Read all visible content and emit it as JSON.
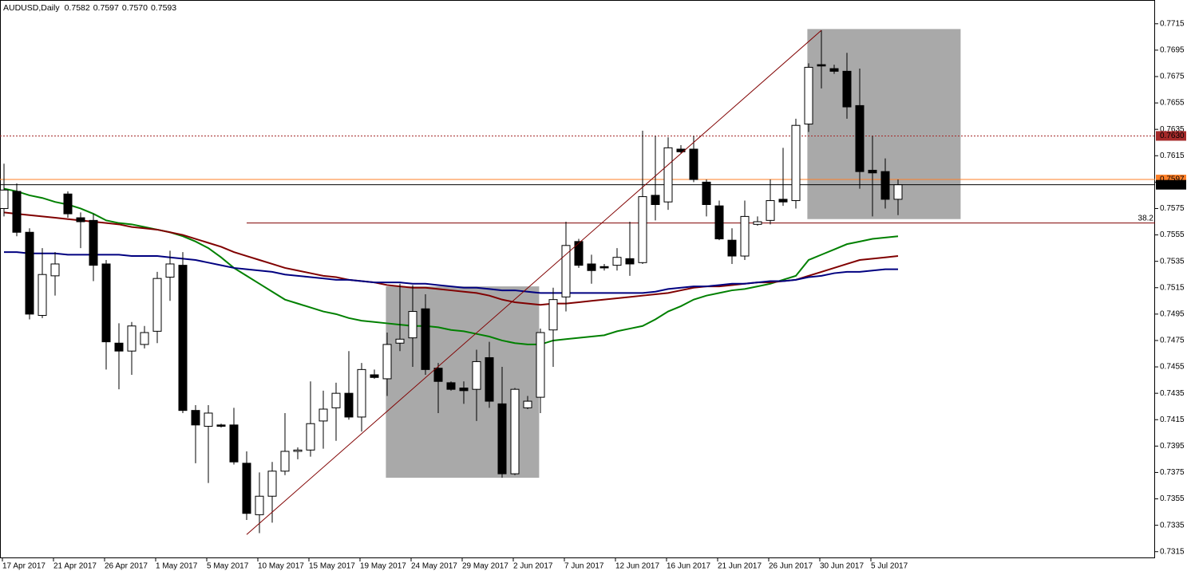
{
  "chart_data": {
    "type": "candlestick",
    "title": "AUDUSD,Daily",
    "header_labels": [
      "0.7582",
      "0.7597",
      "0.7570",
      "0.7593"
    ],
    "categories": [
      "17 Apr 2017",
      null,
      null,
      null,
      "21 Apr 2017",
      null,
      null,
      null,
      "26 Apr 2017",
      null,
      null,
      null,
      "1 May 2017",
      null,
      null,
      null,
      "5 May 2017",
      null,
      null,
      null,
      "10 May 2017",
      null,
      null,
      null,
      "15 May 2017",
      null,
      null,
      null,
      "19 May 2017",
      null,
      null,
      null,
      "24 May 2017",
      null,
      null,
      null,
      "29 May 2017",
      null,
      null,
      null,
      "2 Jun 2017",
      null,
      null,
      null,
      "7 Jun 2017",
      null,
      null,
      null,
      "12 Jun 2017",
      null,
      null,
      null,
      "16 Jun 2017",
      null,
      null,
      null,
      "21 Jun 2017",
      null,
      null,
      null,
      "26 Jun 2017",
      null,
      null,
      null,
      "30 Jun 2017",
      null,
      null,
      null,
      "5 Jul 2017",
      null,
      null
    ],
    "open": [
      0.7575,
      0.7588,
      0.7557,
      0.7494,
      0.7524,
      0.7586,
      0.7568,
      0.7566,
      0.7533,
      0.7473,
      0.7467,
      0.7472,
      0.7482,
      0.7523,
      0.7532,
      0.7422,
      0.741,
      0.7411,
      0.7411,
      0.7382,
      0.7343,
      0.7357,
      0.7376,
      0.7391,
      0.7392,
      0.7414,
      0.7424,
      0.7435,
      0.7417,
      0.7449,
      0.7446,
      0.7473,
      0.7477,
      0.7499,
      0.7454,
      0.7443,
      0.7439,
      0.7438,
      0.7462,
      0.7427,
      0.7374,
      0.7424,
      0.7432,
      0.7483,
      0.7508,
      0.755,
      0.7533,
      0.7531,
      0.7532,
      0.7537,
      0.7534,
      0.7585,
      0.758,
      0.762,
      0.762,
      0.7595,
      0.7577,
      0.7551,
      0.7539,
      0.7563,
      0.7566,
      0.7582,
      0.7581,
      0.7639,
      0.7684,
      0.7681,
      0.7679,
      0.7653,
      0.7604,
      0.7603,
      0.7582
    ],
    "high": [
      0.7609,
      0.7594,
      0.756,
      0.7545,
      0.7542,
      0.7588,
      0.7572,
      0.7571,
      0.7536,
      0.7488,
      0.7489,
      0.7486,
      0.7527,
      0.7543,
      0.7542,
      0.7426,
      0.7426,
      0.7412,
      0.7424,
      0.7391,
      0.7375,
      0.7383,
      0.742,
      0.7394,
      0.7444,
      0.7437,
      0.7443,
      0.7467,
      0.7458,
      0.7453,
      0.7481,
      0.7518,
      0.7517,
      0.751,
      0.7458,
      0.7444,
      0.7444,
      0.7468,
      0.7474,
      0.7455,
      0.7439,
      0.7433,
      0.7484,
      0.7515,
      0.7565,
      0.7552,
      0.754,
      0.7533,
      0.7545,
      0.7565,
      0.7634,
      0.763,
      0.7629,
      0.7623,
      0.763,
      0.7597,
      0.7581,
      0.756,
      0.7581,
      0.7569,
      0.7597,
      0.7621,
      0.7643,
      0.7685,
      0.771,
      0.7684,
      0.7693,
      0.7681,
      0.763,
      0.7613,
      0.7597
    ],
    "low": [
      0.7569,
      0.7554,
      0.7491,
      0.7492,
      0.7509,
      0.7568,
      0.7545,
      0.752,
      0.7453,
      0.7438,
      0.7449,
      0.7469,
      0.7473,
      0.7505,
      0.742,
      0.7382,
      0.7367,
      0.7409,
      0.7381,
      0.7339,
      0.7329,
      0.7337,
      0.7373,
      0.7385,
      0.7387,
      0.7393,
      0.7399,
      0.7415,
      0.7406,
      0.7446,
      0.7433,
      0.7467,
      0.7455,
      0.7449,
      0.742,
      0.7437,
      0.7427,
      0.7414,
      0.7424,
      0.7371,
      0.7373,
      0.7423,
      0.742,
      0.7455,
      0.7497,
      0.753,
      0.7518,
      0.7528,
      0.7528,
      0.7524,
      0.7533,
      0.7566,
      0.7574,
      0.7617,
      0.7595,
      0.7569,
      0.7551,
      0.7533,
      0.7536,
      0.7562,
      0.7563,
      0.7577,
      0.7575,
      0.7633,
      0.7666,
      0.7677,
      0.7643,
      0.759,
      0.7569,
      0.7575,
      0.757
    ],
    "close": [
      0.7589,
      0.7557,
      0.7495,
      0.7525,
      0.7533,
      0.7571,
      0.7565,
      0.7532,
      0.7474,
      0.7467,
      0.7486,
      0.7481,
      0.7522,
      0.7533,
      0.7422,
      0.7411,
      0.742,
      0.741,
      0.7383,
      0.7344,
      0.7357,
      0.7376,
      0.7391,
      0.7392,
      0.7412,
      0.7423,
      0.7435,
      0.7417,
      0.7453,
      0.7447,
      0.7472,
      0.7476,
      0.7497,
      0.7453,
      0.7444,
      0.7438,
      0.7437,
      0.7459,
      0.7429,
      0.7374,
      0.7438,
      0.7429,
      0.7481,
      0.7506,
      0.7547,
      0.7532,
      0.7528,
      0.753,
      0.7538,
      0.7533,
      0.7584,
      0.7578,
      0.7621,
      0.7618,
      0.7597,
      0.7578,
      0.7552,
      0.7539,
      0.7569,
      0.7565,
      0.7581,
      0.758,
      0.7638,
      0.7682,
      0.7683,
      0.7679,
      0.7652,
      0.7603,
      0.7602,
      0.7582,
      0.7593
    ],
    "series": [
      {
        "color": "#008000",
        "values": [
          0.759,
          0.7588,
          0.7585,
          0.7583,
          0.758,
          0.7578,
          0.7575,
          0.7571,
          0.7566,
          0.7564,
          0.7563,
          0.7561,
          0.7559,
          0.7557,
          0.7554,
          0.755,
          0.7545,
          0.7538,
          0.753,
          0.7524,
          0.7518,
          0.7512,
          0.7506,
          0.7503,
          0.75,
          0.7497,
          0.7495,
          0.7492,
          0.749,
          0.7489,
          0.7488,
          0.7487,
          0.7486,
          0.7486,
          0.7485,
          0.7483,
          0.7482,
          0.748,
          0.7478,
          0.7475,
          0.7473,
          0.7472,
          0.7472,
          0.7475,
          0.7476,
          0.7477,
          0.7478,
          0.7479,
          0.7482,
          0.7484,
          0.7486,
          0.7491,
          0.7497,
          0.7501,
          0.7506,
          0.7509,
          0.7511,
          0.7513,
          0.7514,
          0.7516,
          0.7518,
          0.7521,
          0.7524,
          0.7536,
          0.754,
          0.7544,
          0.7548,
          0.755,
          0.7552,
          0.7553,
          0.7554
        ]
      },
      {
        "color": "#800000",
        "values": [
          0.7572,
          0.7571,
          0.757,
          0.7569,
          0.7568,
          0.7567,
          0.7566,
          0.7565,
          0.7564,
          0.7563,
          0.7561,
          0.756,
          0.7559,
          0.7557,
          0.7555,
          0.7552,
          0.7549,
          0.7546,
          0.7542,
          0.7539,
          0.7536,
          0.7533,
          0.753,
          0.7528,
          0.7526,
          0.7524,
          0.7523,
          0.7521,
          0.752,
          0.7519,
          0.7517,
          0.7516,
          0.7515,
          0.7515,
          0.7514,
          0.7513,
          0.7512,
          0.7511,
          0.7509,
          0.7506,
          0.7504,
          0.7503,
          0.7502,
          0.7503,
          0.7503,
          0.7504,
          0.7505,
          0.7506,
          0.7507,
          0.7508,
          0.7509,
          0.751,
          0.7511,
          0.7513,
          0.7515,
          0.7516,
          0.7516,
          0.7517,
          0.7518,
          0.7519,
          0.7519,
          0.752,
          0.7521,
          0.7524,
          0.7527,
          0.753,
          0.7533,
          0.7536,
          0.7537,
          0.7538,
          0.7539
        ]
      },
      {
        "color": "#000080",
        "values": [
          0.7542,
          0.7542,
          0.7541,
          0.7541,
          0.7541,
          0.754,
          0.754,
          0.754,
          0.754,
          0.754,
          0.7539,
          0.7539,
          0.7539,
          0.7538,
          0.7537,
          0.7536,
          0.7534,
          0.7532,
          0.753,
          0.7529,
          0.7528,
          0.7527,
          0.7525,
          0.7524,
          0.7523,
          0.7522,
          0.7521,
          0.7521,
          0.752,
          0.7519,
          0.7519,
          0.7519,
          0.7518,
          0.7518,
          0.7517,
          0.7516,
          0.7515,
          0.7515,
          0.7514,
          0.7513,
          0.7513,
          0.7512,
          0.7511,
          0.7511,
          0.7511,
          0.7511,
          0.7511,
          0.7511,
          0.7511,
          0.7511,
          0.7511,
          0.7512,
          0.7514,
          0.7515,
          0.7516,
          0.7516,
          0.7517,
          0.7518,
          0.7518,
          0.7519,
          0.752,
          0.752,
          0.7521,
          0.7523,
          0.7524,
          0.7526,
          0.7527,
          0.7527,
          0.7528,
          0.7529,
          0.7529
        ]
      }
    ],
    "hlines": [
      {
        "value": 0.763,
        "label": "0.7630",
        "color": "#a52a2a",
        "dotted": true
      },
      {
        "value": 0.7597,
        "label": "0.7597",
        "color": "#ff7f27",
        "dotted": false
      },
      {
        "value": 0.7593,
        "label": "0.7593",
        "color": "#000000",
        "dotted": false
      }
    ],
    "fibo": {
      "value": 0.7564,
      "label": "38.2",
      "start": 19,
      "color": "#800000"
    },
    "trendline": {
      "x": [
        19,
        64
      ],
      "values": [
        0.7328,
        0.771
      ],
      "color": "#800000"
    },
    "rectangles": [
      {
        "x": [
          29.9,
          41.9
        ],
        "values": [
          0.7516,
          0.7371
        ],
        "color": "#a9a9a9"
      },
      {
        "x": [
          62.9,
          74.9
        ],
        "values": [
          0.7711,
          0.7567
        ],
        "color": "#a9a9a9"
      }
    ],
    "bull_color": "#ffffff",
    "bear_color": "#000000",
    "ylim": [
      0.731,
      0.7733
    ],
    "yticks": [
      0.7315,
      0.7335,
      0.7355,
      0.7375,
      0.7395,
      0.7415,
      0.7435,
      0.7455,
      0.7475,
      0.7495,
      0.7515,
      0.7535,
      0.7555,
      0.7575,
      0.7595,
      0.7615,
      0.7635,
      0.7655,
      0.7675,
      0.7695,
      0.7715
    ]
  }
}
